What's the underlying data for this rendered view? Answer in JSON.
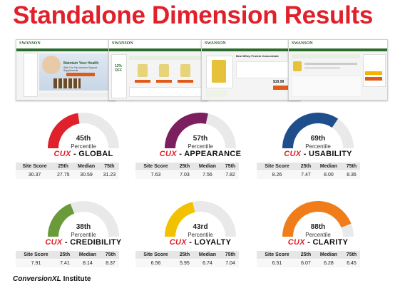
{
  "title": "Standalone Dimension Results",
  "thumbnails": [
    {
      "name": "homepage-screenshot",
      "logo": "SWANSON",
      "headline": "Maintain Your Health",
      "sub": "With Our Top Immune Support Supplements"
    },
    {
      "name": "category-screenshot",
      "logo": "SWANSON",
      "promo": "12% OFF"
    },
    {
      "name": "product-screenshot",
      "logo": "SWANSON",
      "product": "Best Whey Protein Concentrate",
      "price": "$19.99"
    },
    {
      "name": "cart-screenshot",
      "logo": "SWANSON"
    }
  ],
  "columns": [
    "Site Score",
    "25th",
    "Median",
    "75th"
  ],
  "dimensions": [
    {
      "key": "global",
      "percentile": "45th",
      "percentile_label": "Percentile",
      "prefix": "CUX",
      "name": " - GLOBAL",
      "color": "#e0202a",
      "fill": 0.45,
      "values": [
        "30.37",
        "27.75",
        "30.59",
        "31.23"
      ]
    },
    {
      "key": "appearance",
      "percentile": "57th",
      "percentile_label": "Percentile",
      "prefix": "CUX",
      "name": " - APPEARANCE",
      "color": "#7b1f5e",
      "fill": 0.57,
      "values": [
        "7.63",
        "7.03",
        "7.56",
        "7.82"
      ]
    },
    {
      "key": "usability",
      "percentile": "69th",
      "percentile_label": "Percentile",
      "prefix": "CUX",
      "name": " - USABILITY",
      "color": "#1f4e8c",
      "fill": 0.69,
      "values": [
        "8.26",
        "7.47",
        "8.00",
        "8.36"
      ]
    },
    {
      "key": "credibility",
      "percentile": "38th",
      "percentile_label": "Percentile",
      "prefix": "CUX",
      "name": " - CREDIBILITY",
      "color": "#6a9a3a",
      "fill": 0.38,
      "values": [
        "7.91",
        "7.41",
        "8.14",
        "8.37"
      ]
    },
    {
      "key": "loyalty",
      "percentile": "43rd",
      "percentile_label": "Percentile",
      "prefix": "CUX",
      "name": " - LOYALTY",
      "color": "#f2c200",
      "fill": 0.43,
      "values": [
        "6.56",
        "5.95",
        "6.74",
        "7.04"
      ]
    },
    {
      "key": "clarity",
      "percentile": "88th",
      "percentile_label": "Percentile",
      "prefix": "CUX",
      "name": " - CLARITY",
      "color": "#f07d1a",
      "fill": 0.88,
      "values": [
        "6.51",
        "6.07",
        "6.28",
        "6.45"
      ]
    }
  ],
  "footer": {
    "brand": "ConversionXL",
    "suffix": " Institute"
  }
}
